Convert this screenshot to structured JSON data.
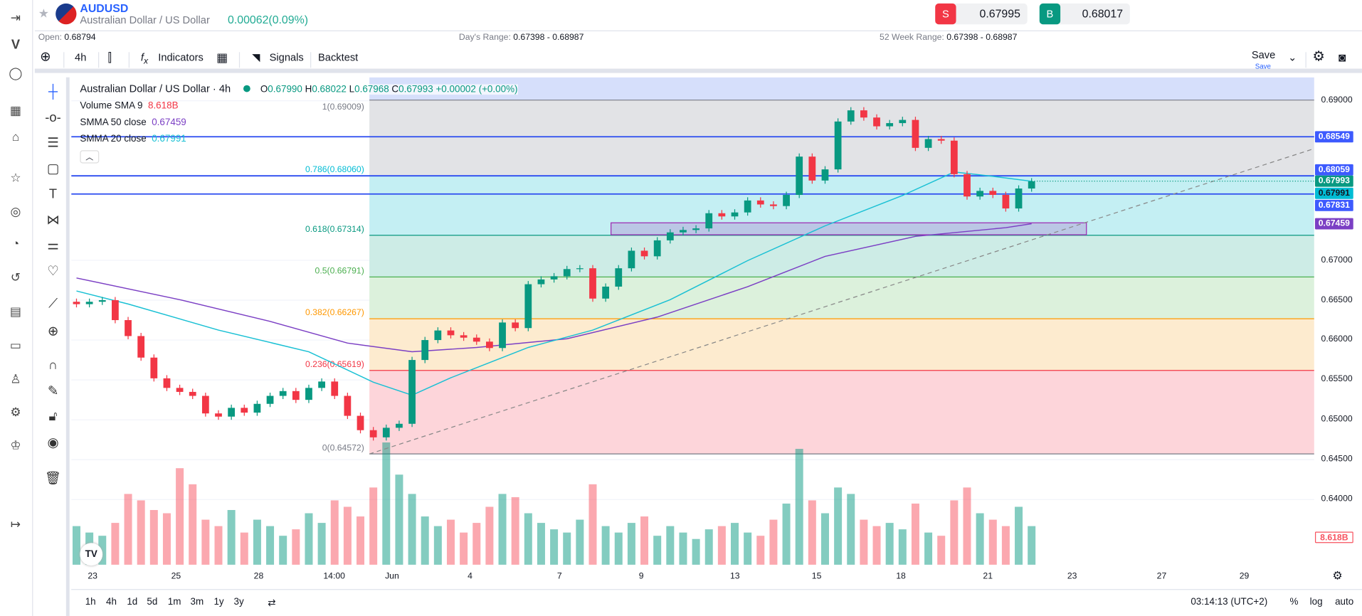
{
  "header": {
    "symbol": "AUDUSD",
    "name": "Australian Dollar / US Dollar",
    "change": "0.00062(0.09%)",
    "sell_label": "S",
    "sell_price": "0.67995",
    "buy_label": "B",
    "buy_price": "0.68017",
    "open_label": "Open:",
    "open": "0.68794",
    "days_range_label": "Day's Range:",
    "days_range": "0.67398 - 0.68987",
    "week52_label": "52 Week Range:",
    "week52": "0.67398 - 0.68987"
  },
  "toolbar": {
    "interval": "4h",
    "indicators": "Indicators",
    "signals": "Signals",
    "backtest": "Backtest",
    "save": "Save",
    "save_sub": "Save"
  },
  "legend": {
    "title": "Australian Dollar / US Dollar · 4h",
    "o_label": "O",
    "o": "0.67990",
    "h_label": "H",
    "h": "0.68022",
    "l_label": "L",
    "l": "0.67968",
    "c_label": "C",
    "c": "0.67993",
    "chg": "+0.00002 (+0.00%)",
    "vol_label": "Volume SMA 9",
    "vol": "8.618B",
    "smma50_label": "SMMA 50 close",
    "smma50": "0.67459",
    "smma20_label": "SMMA 20 close",
    "smma20": "0.67991"
  },
  "colors": {
    "up": "#089981",
    "down": "#f23645",
    "blue_line": "#2a4bf0",
    "smma50": "#7b3fc4",
    "smma20": "#19c0d4"
  },
  "chart_data": {
    "type": "candlestick",
    "title": "Australian Dollar / US Dollar · 4h",
    "closes": [
      0.6645,
      0.6648,
      0.665,
      0.6625,
      0.6605,
      0.6578,
      0.6552,
      0.654,
      0.6535,
      0.653,
      0.6508,
      0.6504,
      0.6515,
      0.6509,
      0.652,
      0.653,
      0.6536,
      0.6525,
      0.654,
      0.6548,
      0.653,
      0.6505,
      0.6487,
      0.6478,
      0.649,
      0.6495,
      0.6575,
      0.66,
      0.6612,
      0.6606,
      0.6603,
      0.6598,
      0.659,
      0.6622,
      0.6615,
      0.667,
      0.6676,
      0.668,
      0.6689,
      0.669,
      0.6652,
      0.6667,
      0.669,
      0.6712,
      0.6705,
      0.6725,
      0.6735,
      0.6738,
      0.674,
      0.6759,
      0.6755,
      0.676,
      0.6775,
      0.677,
      0.6768,
      0.6782,
      0.683,
      0.68,
      0.6814,
      0.6874,
      0.6888,
      0.6879,
      0.6868,
      0.6872,
      0.6876,
      0.6841,
      0.6852,
      0.685,
      0.6808,
      0.678,
      0.6787,
      0.6782,
      0.6765,
      0.679,
      0.6799
    ],
    "volumes_B": [
      12,
      10,
      9,
      13,
      22,
      20,
      17,
      16,
      30,
      25,
      14,
      12,
      17,
      10,
      14,
      12,
      9,
      11,
      16,
      13,
      20,
      18,
      15,
      24,
      38,
      28,
      22,
      15,
      12,
      14,
      10,
      13,
      18,
      22,
      21,
      16,
      13,
      11,
      10,
      14,
      25,
      12,
      10,
      13,
      15,
      9,
      12,
      10,
      8,
      11,
      12,
      13,
      10,
      9,
      14,
      19,
      36,
      20,
      16,
      24,
      22,
      14,
      12,
      13,
      11,
      19,
      10,
      9,
      20,
      24,
      16,
      14,
      12,
      18,
      12
    ],
    "smma50": {
      "idx": [
        0,
        8,
        15,
        21,
        26,
        31,
        38,
        45,
        52,
        58,
        65,
        72,
        74
      ],
      "values": [
        0.66778,
        0.66506,
        0.66234,
        0.65962,
        0.65853,
        0.65907,
        0.66016,
        0.66288,
        0.66669,
        0.67049,
        0.673,
        0.67409,
        0.67459
      ]
    },
    "smma20": {
      "idx": [
        0,
        4,
        11,
        18,
        23,
        26,
        29,
        35,
        40,
        46,
        52,
        58,
        64,
        68,
        71,
        74
      ],
      "values": [
        0.66615,
        0.66452,
        0.66125,
        0.65853,
        0.65472,
        0.65309,
        0.65527,
        0.65907,
        0.66125,
        0.66506,
        0.66996,
        0.67432,
        0.67813,
        0.68107,
        0.68053,
        0.67991
      ]
    },
    "fib": [
      {
        "label": "1(0.69009)",
        "p": 0.69009,
        "fill": "#e2e3e6"
      },
      {
        "label": "0.786(0.68060)",
        "p": 0.6806,
        "fill": "#c4eff3",
        "lc": "#00bcd4"
      },
      {
        "label": "0.618(0.67314)",
        "p": 0.67314,
        "fill": "#cdece6",
        "lc": "#089981"
      },
      {
        "label": "0.5(0.66791)",
        "p": 0.66791,
        "fill": "#dcf1dc",
        "lc": "#4caf50"
      },
      {
        "label": "0.382(0.66267)",
        "p": 0.66267,
        "fill": "#fdebcf",
        "lc": "#ff9800"
      },
      {
        "label": "0.236(0.65619)",
        "p": 0.65619,
        "fill": "#fdd5da",
        "lc": "#f23645"
      },
      {
        "label": "0(0.64572)",
        "p": 0.64572,
        "lc": "#787b86"
      }
    ],
    "hlines": [
      0.68549,
      0.68059,
      0.67831
    ],
    "price_tags": [
      {
        "v": "0.68549",
        "c": "#3d5afe"
      },
      {
        "v": "0.68059",
        "c": "#3d5afe"
      },
      {
        "v": "0.67993",
        "c": "#089981"
      },
      {
        "v": "0.67991",
        "c": "#00bcd4"
      },
      {
        "v": "0.67831",
        "c": "#3d5afe"
      },
      {
        "v": "0.67459",
        "c": "#7b3fc4"
      },
      {
        "v": "8.618B",
        "c": "#f7525f"
      }
    ],
    "y_ticks": [
      "0.69000",
      "0.67000",
      "0.66500",
      "0.66000",
      "0.65500",
      "0.65000",
      "0.64500",
      "0.64000"
    ],
    "y_tick_values": [
      0.69,
      0.67,
      0.665,
      0.66,
      0.655,
      0.65,
      0.645,
      0.64
    ],
    "x_ticks": [
      "23",
      "25",
      "28",
      "14:00",
      "Jun",
      "4",
      "7",
      "9",
      "13",
      "15",
      "18",
      "21",
      "23",
      "27",
      "29"
    ]
  },
  "bottom": {
    "ranges": [
      "1h",
      "4h",
      "1d",
      "5d",
      "1m",
      "3m",
      "1y",
      "3y"
    ],
    "clock": "03:14:13 (UTC+2)",
    "pct": "%",
    "log": "log",
    "auto": "auto"
  }
}
